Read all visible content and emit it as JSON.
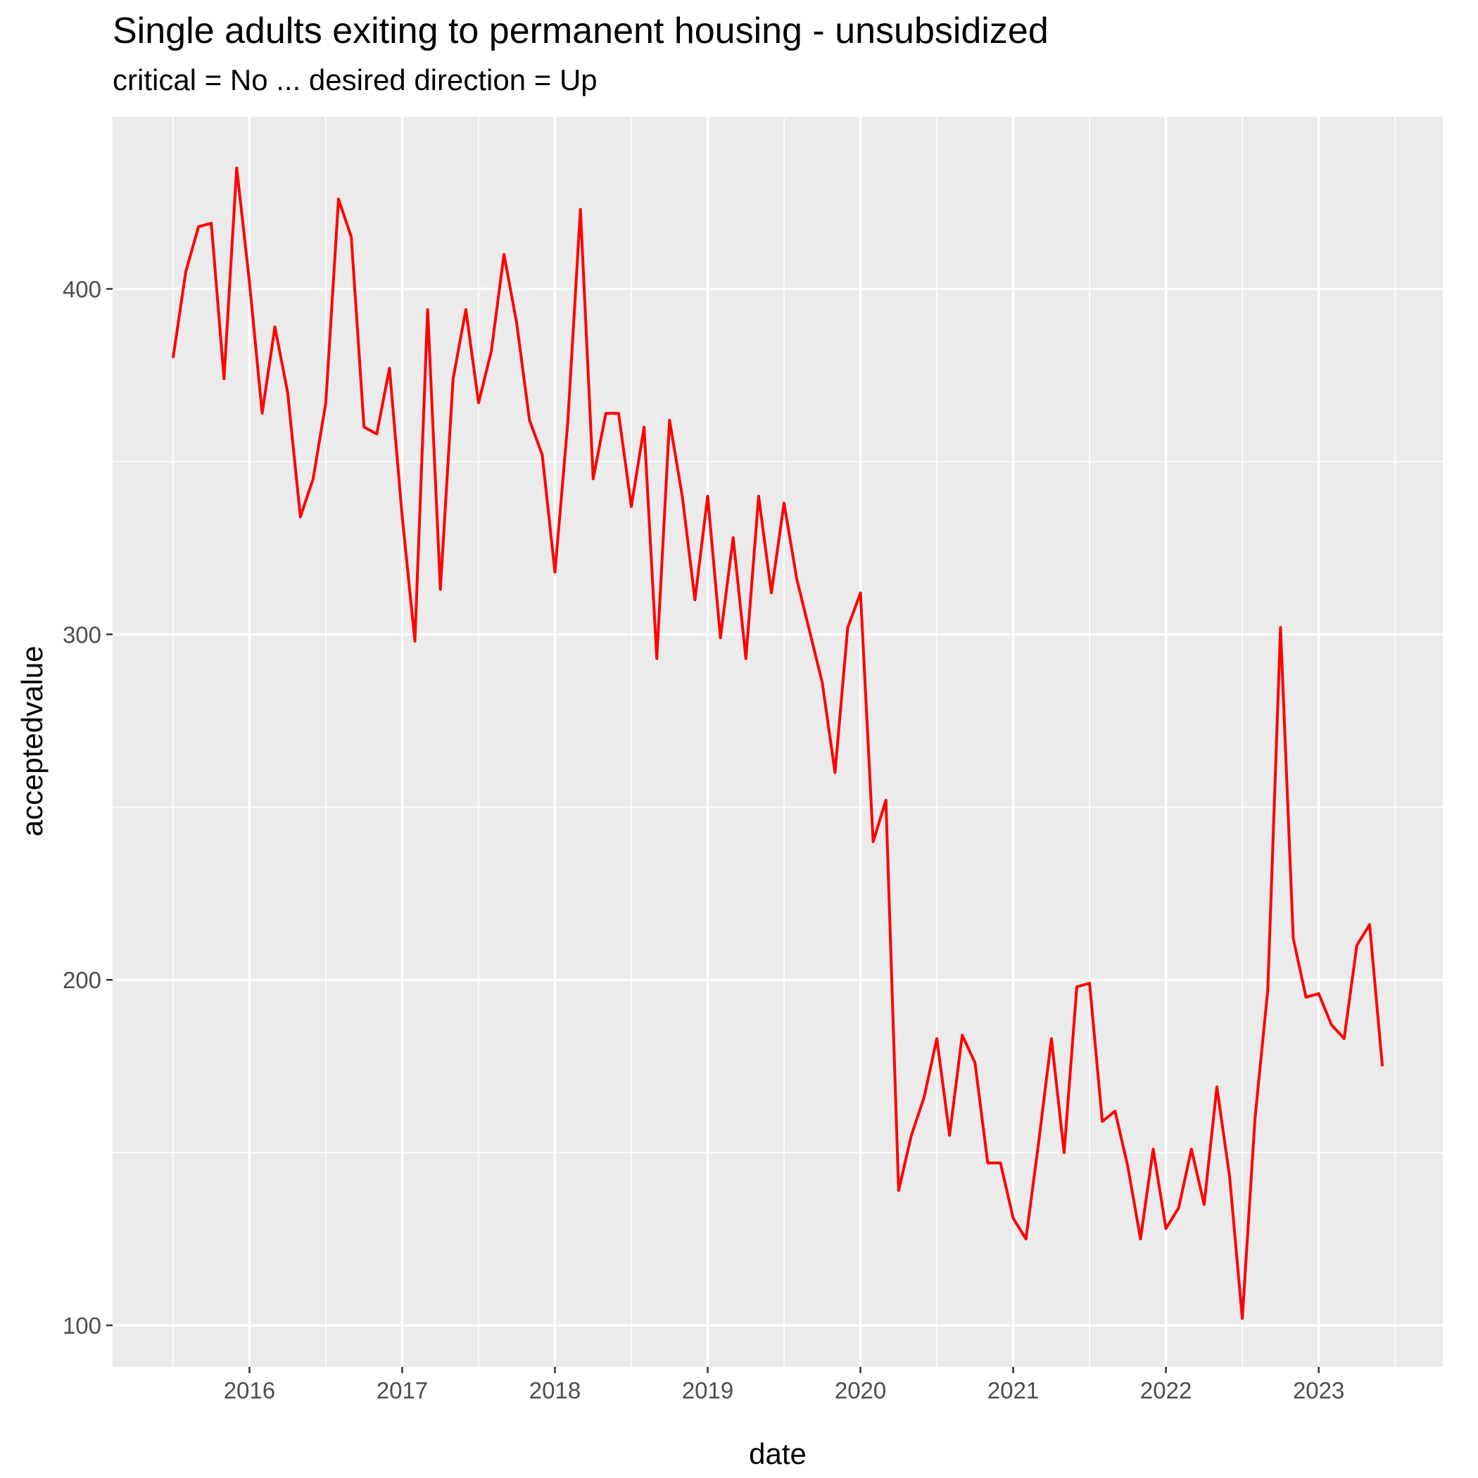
{
  "chart_data": {
    "type": "line",
    "title": "Single adults exiting to permanent housing - unsubsidized",
    "subtitle": "critical = No ... desired direction = Up",
    "xlabel": "date",
    "ylabel": "acceptedvalue",
    "ylim": [
      88,
      450
    ],
    "yticks": [
      100,
      200,
      300,
      400
    ],
    "xticks": [
      "2016",
      "2017",
      "2018",
      "2019",
      "2020",
      "2021",
      "2022",
      "2023"
    ],
    "grid": true,
    "legend": "none",
    "colors": {
      "line": "#ff0000",
      "panel": "#ebebeb",
      "grid": "#ffffff",
      "tick": "#333333"
    },
    "series": [
      {
        "x": [
          "2015-07",
          "2015-08",
          "2015-09",
          "2015-10",
          "2015-11",
          "2015-12",
          "2016-01",
          "2016-02",
          "2016-03",
          "2016-04",
          "2016-05",
          "2016-06",
          "2016-07",
          "2016-08",
          "2016-09",
          "2016-10",
          "2016-11",
          "2016-12",
          "2017-01",
          "2017-02",
          "2017-03",
          "2017-04",
          "2017-05",
          "2017-06",
          "2017-07",
          "2017-08",
          "2017-09",
          "2017-10",
          "2017-11",
          "2017-12",
          "2018-01",
          "2018-02",
          "2018-03",
          "2018-04",
          "2018-05",
          "2018-06",
          "2018-07",
          "2018-08",
          "2018-09",
          "2018-10",
          "2018-11",
          "2018-12",
          "2019-01",
          "2019-02",
          "2019-03",
          "2019-04",
          "2019-05",
          "2019-06",
          "2019-07",
          "2019-08",
          "2019-09",
          "2019-10",
          "2019-11",
          "2019-12",
          "2020-01",
          "2020-02",
          "2020-03",
          "2020-04",
          "2020-05",
          "2020-06",
          "2020-07",
          "2020-08",
          "2020-09",
          "2020-10",
          "2020-11",
          "2020-12",
          "2021-01",
          "2021-02",
          "2021-03",
          "2021-04",
          "2021-05",
          "2021-06",
          "2021-07",
          "2021-08",
          "2021-09",
          "2021-10",
          "2021-11",
          "2021-12",
          "2022-01",
          "2022-02",
          "2022-03",
          "2022-04",
          "2022-05",
          "2022-06",
          "2022-07",
          "2022-08",
          "2022-09",
          "2022-10",
          "2022-11",
          "2022-12",
          "2023-01",
          "2023-02",
          "2023-03",
          "2023-04",
          "2023-05",
          "2023-06"
        ],
        "values": [
          380,
          405,
          418,
          419,
          374,
          435,
          402,
          364,
          389,
          370,
          334,
          345,
          367,
          426,
          415,
          360,
          358,
          377,
          334,
          298,
          394,
          313,
          374,
          394,
          367,
          382,
          410,
          390,
          362,
          352,
          318,
          361,
          423,
          345,
          364,
          364,
          337,
          360,
          293,
          362,
          340,
          310,
          340,
          299,
          328,
          293,
          340,
          312,
          338,
          316,
          301,
          286,
          260,
          302,
          312,
          240,
          252,
          139,
          155,
          166,
          183,
          155,
          184,
          176,
          147,
          147,
          131,
          125,
          153,
          183,
          150,
          198,
          199,
          159,
          162,
          146,
          125,
          151,
          128,
          134,
          151,
          135,
          169,
          143,
          102,
          160,
          197,
          302,
          212,
          195,
          196,
          187,
          183,
          210,
          216,
          175
        ]
      }
    ]
  }
}
